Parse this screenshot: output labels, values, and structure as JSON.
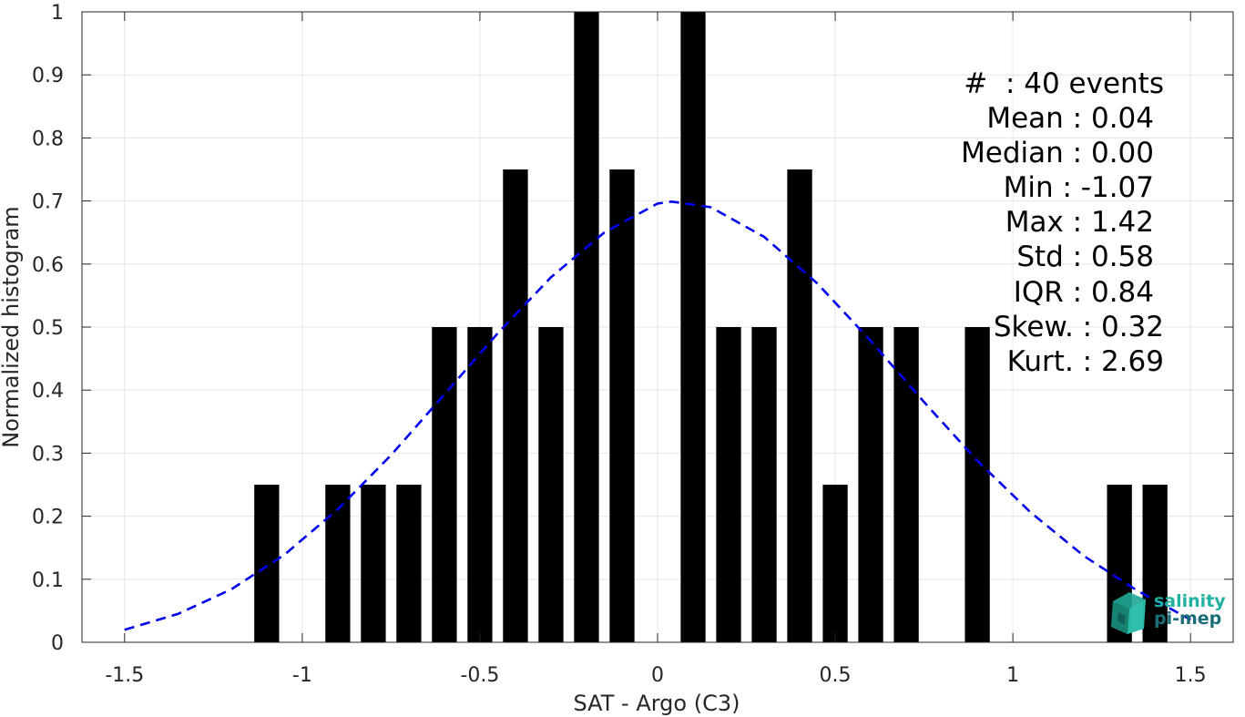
{
  "chart_data": {
    "type": "bar",
    "title": "",
    "xlabel": "SAT - Argo (C3)",
    "ylabel": "Normalized histogram",
    "xlim": [
      -1.62,
      1.62
    ],
    "ylim": [
      0,
      1
    ],
    "grid": true,
    "xticks": [
      -1.5,
      -1,
      -0.5,
      0,
      0.5,
      1,
      1.5
    ],
    "xtick_labels": [
      "-1.5",
      "-1",
      "-0.5",
      "0",
      "0.5",
      "1",
      "1.5"
    ],
    "yticks": [
      0,
      0.1,
      0.2,
      0.3,
      0.4,
      0.5,
      0.6,
      0.7,
      0.8,
      0.9,
      1
    ],
    "ytick_labels": [
      "0",
      "0.1",
      "0.2",
      "0.3",
      "0.4",
      "0.5",
      "0.6",
      "0.7",
      "0.8",
      "0.9",
      "1"
    ],
    "bar_width": 0.07,
    "bars": {
      "x": [
        -1.1,
        -0.9,
        -0.8,
        -0.7,
        -0.6,
        -0.5,
        -0.4,
        -0.3,
        -0.2,
        -0.1,
        0.1,
        0.2,
        0.3,
        0.4,
        0.5,
        0.6,
        0.7,
        0.9,
        1.3,
        1.4
      ],
      "values": [
        0.25,
        0.25,
        0.25,
        0.25,
        0.5,
        0.5,
        0.75,
        0.5,
        1,
        0.75,
        1,
        0.5,
        0.5,
        0.75,
        0.25,
        0.5,
        0.5,
        0.5,
        0.25,
        0.25
      ],
      "color": "#000000"
    },
    "fit_curve": {
      "style": "dashed",
      "color": "#0000ee",
      "x": [
        -1.5,
        -1.35,
        -1.2,
        -1.05,
        -0.9,
        -0.75,
        -0.6,
        -0.45,
        -0.3,
        -0.15,
        0,
        0.04,
        0.15,
        0.3,
        0.45,
        0.6,
        0.75,
        0.9,
        1.05,
        1.2,
        1.35,
        1.5
      ],
      "y": [
        0.02,
        0.045,
        0.084,
        0.139,
        0.211,
        0.297,
        0.393,
        0.49,
        0.579,
        0.65,
        0.696,
        0.699,
        0.69,
        0.643,
        0.569,
        0.478,
        0.381,
        0.288,
        0.206,
        0.137,
        0.082,
        0.036
      ]
    },
    "annotations": [
      "#  : 40 events",
      "Mean : 0.04",
      "Median : 0.00",
      "Min : -1.07",
      "Max : 1.42",
      "Std : 0.58",
      "IQR : 0.84",
      "Skew. : 0.32",
      "Kurt. : 2.69"
    ]
  },
  "logo": {
    "name": "salinity-pi-mep-logo",
    "line1": "salinity",
    "line2": "pi-mep",
    "color1": "#1fb0a0",
    "color2": "#1b6e78"
  },
  "colors": {
    "grid": "#e6e6e6",
    "axis": "#262626"
  }
}
